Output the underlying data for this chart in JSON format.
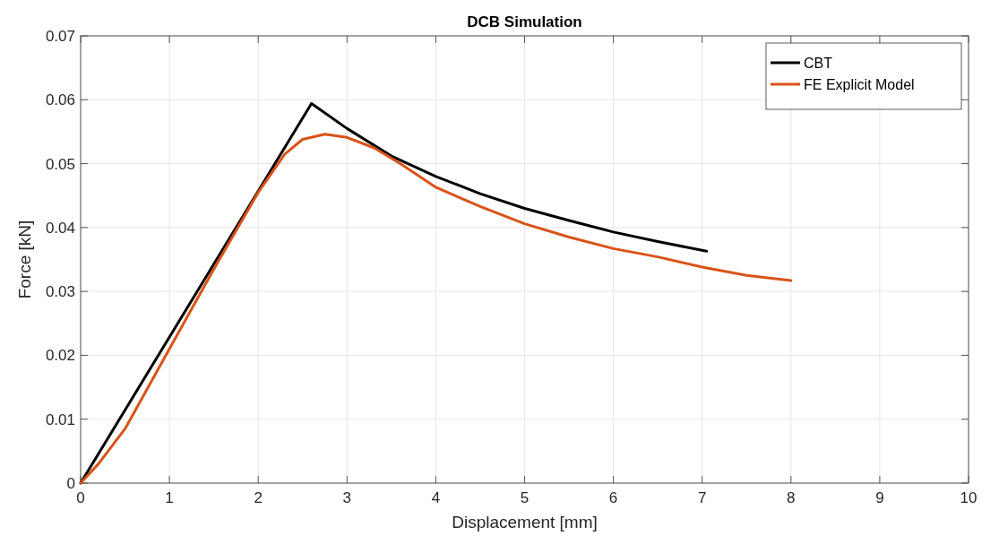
{
  "chart_data": {
    "type": "line",
    "title": "DCB Simulation",
    "xlabel": "Displacement [mm]",
    "ylabel": "Force [kN]",
    "xlim": [
      0,
      10
    ],
    "xticks": [
      0,
      1,
      2,
      3,
      4,
      5,
      6,
      7,
      8,
      9,
      10
    ],
    "ylim": [
      0,
      0.07
    ],
    "yticks": [
      0,
      0.01,
      0.02,
      0.03,
      0.04,
      0.05,
      0.06,
      0.07
    ],
    "grid": true,
    "legend": "top right",
    "line_style": "solid",
    "series": [
      {
        "name": "CBT",
        "color": "#000000",
        "x": [
          0,
          2.6,
          3,
          3.5,
          4,
          4.5,
          5,
          5.5,
          6,
          6.5,
          7.05
        ],
        "values": [
          0,
          0.0594,
          0.0555,
          0.0512,
          0.048,
          0.0453,
          0.043,
          0.0411,
          0.0393,
          0.0378,
          0.0363
        ]
      },
      {
        "name": "FE Explicit Model",
        "color": "#d95319",
        "x": [
          0,
          0.2,
          0.5,
          1,
          1.5,
          2,
          2.3,
          2.5,
          2.75,
          3,
          3.3,
          3.6,
          4,
          4.5,
          5,
          5.5,
          6,
          6.5,
          7,
          7.5,
          8
        ],
        "values": [
          0,
          0.003,
          0.0085,
          0.021,
          0.0335,
          0.0455,
          0.0515,
          0.0538,
          0.0546,
          0.0541,
          0.0525,
          0.05,
          0.0463,
          0.0433,
          0.0406,
          0.0385,
          0.0367,
          0.0354,
          0.0338,
          0.0325,
          0.0317
        ]
      }
    ]
  }
}
